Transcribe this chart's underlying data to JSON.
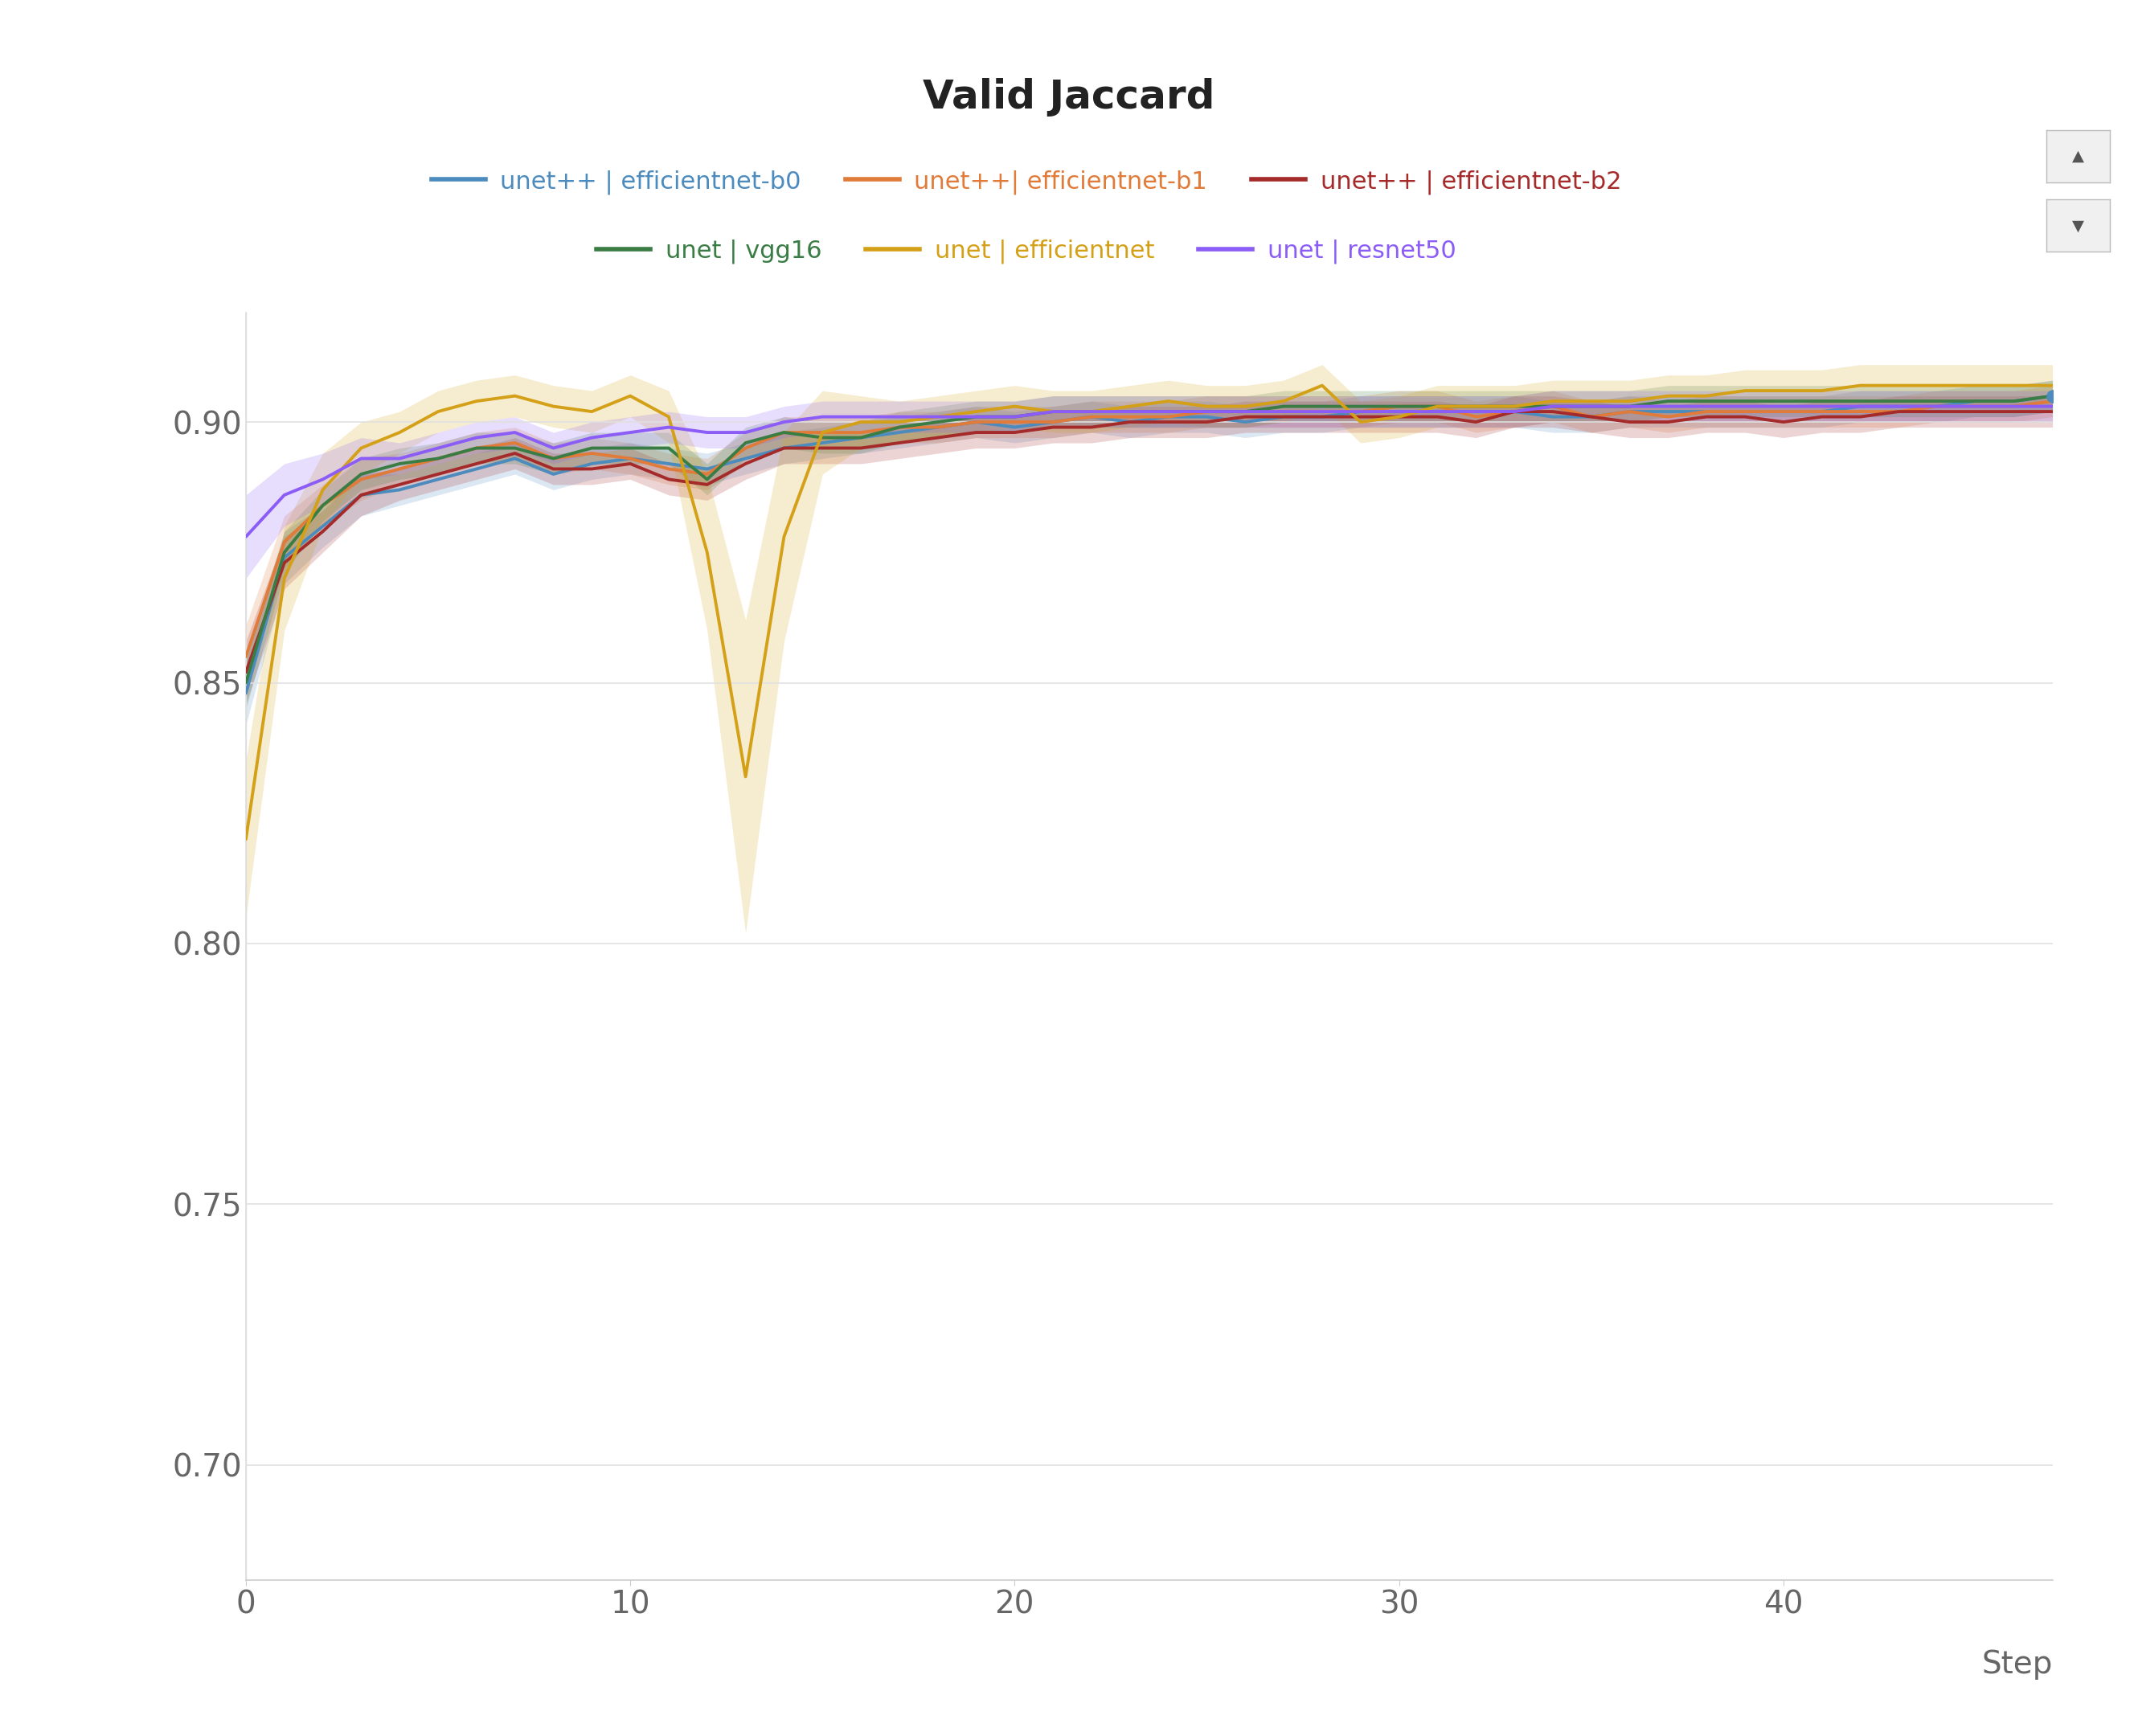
{
  "title": "Valid Jaccard",
  "xlabel": "Step",
  "background_color": "#ffffff",
  "series": [
    {
      "label": "unet++ | efficientnet-b0",
      "color": "#4b8bbe",
      "steps": [
        0,
        1,
        2,
        3,
        4,
        5,
        6,
        7,
        8,
        9,
        10,
        11,
        12,
        13,
        14,
        15,
        16,
        17,
        18,
        19,
        20,
        21,
        22,
        23,
        24,
        25,
        26,
        27,
        28,
        29,
        30,
        31,
        32,
        33,
        34,
        35,
        36,
        37,
        38,
        39,
        40,
        41,
        42,
        43,
        44,
        45,
        46,
        47
      ],
      "values": [
        0.848,
        0.874,
        0.88,
        0.886,
        0.887,
        0.889,
        0.891,
        0.893,
        0.89,
        0.892,
        0.893,
        0.892,
        0.891,
        0.893,
        0.895,
        0.896,
        0.897,
        0.898,
        0.899,
        0.9,
        0.899,
        0.9,
        0.901,
        0.9,
        0.901,
        0.901,
        0.9,
        0.901,
        0.901,
        0.902,
        0.902,
        0.902,
        0.902,
        0.902,
        0.901,
        0.901,
        0.902,
        0.902,
        0.902,
        0.902,
        0.902,
        0.902,
        0.903,
        0.903,
        0.903,
        0.904,
        0.904,
        0.905
      ],
      "std": [
        0.006,
        0.005,
        0.004,
        0.004,
        0.003,
        0.003,
        0.003,
        0.003,
        0.003,
        0.003,
        0.003,
        0.003,
        0.003,
        0.003,
        0.003,
        0.003,
        0.003,
        0.003,
        0.003,
        0.003,
        0.003,
        0.003,
        0.003,
        0.003,
        0.003,
        0.003,
        0.003,
        0.003,
        0.003,
        0.003,
        0.003,
        0.003,
        0.003,
        0.003,
        0.003,
        0.003,
        0.003,
        0.003,
        0.003,
        0.003,
        0.003,
        0.003,
        0.003,
        0.003,
        0.003,
        0.003,
        0.003,
        0.003
      ],
      "last_marker": true
    },
    {
      "label": "unet++| efficientnet-b1",
      "color": "#e07b39",
      "steps": [
        0,
        1,
        2,
        3,
        4,
        5,
        6,
        7,
        8,
        9,
        10,
        11,
        12,
        13,
        14,
        15,
        16,
        17,
        18,
        19,
        20,
        21,
        22,
        23,
        24,
        25,
        26,
        27,
        28,
        29,
        30,
        31,
        32,
        33,
        34,
        35,
        36,
        37,
        38,
        39,
        40,
        41,
        42,
        43,
        44,
        45,
        46,
        47
      ],
      "values": [
        0.855,
        0.877,
        0.884,
        0.889,
        0.891,
        0.893,
        0.895,
        0.896,
        0.893,
        0.894,
        0.893,
        0.891,
        0.89,
        0.895,
        0.898,
        0.898,
        0.898,
        0.899,
        0.899,
        0.9,
        0.9,
        0.9,
        0.901,
        0.901,
        0.901,
        0.902,
        0.902,
        0.902,
        0.902,
        0.902,
        0.903,
        0.903,
        0.901,
        0.902,
        0.903,
        0.901,
        0.902,
        0.901,
        0.902,
        0.902,
        0.902,
        0.902,
        0.902,
        0.902,
        0.903,
        0.903,
        0.903,
        0.904
      ],
      "std": [
        0.006,
        0.005,
        0.004,
        0.004,
        0.003,
        0.003,
        0.003,
        0.003,
        0.003,
        0.003,
        0.003,
        0.003,
        0.003,
        0.003,
        0.003,
        0.003,
        0.003,
        0.003,
        0.003,
        0.003,
        0.003,
        0.003,
        0.003,
        0.003,
        0.003,
        0.003,
        0.003,
        0.003,
        0.003,
        0.003,
        0.003,
        0.003,
        0.003,
        0.003,
        0.003,
        0.003,
        0.003,
        0.003,
        0.003,
        0.003,
        0.003,
        0.003,
        0.003,
        0.003,
        0.003,
        0.003,
        0.003,
        0.003
      ],
      "last_marker": false
    },
    {
      "label": "unet++ | efficientnet-b2",
      "color": "#a52a2a",
      "steps": [
        0,
        1,
        2,
        3,
        4,
        5,
        6,
        7,
        8,
        9,
        10,
        11,
        12,
        13,
        14,
        15,
        16,
        17,
        18,
        19,
        20,
        21,
        22,
        23,
        24,
        25,
        26,
        27,
        28,
        29,
        30,
        31,
        32,
        33,
        34,
        35,
        36,
        37,
        38,
        39,
        40,
        41,
        42,
        43,
        44,
        45,
        46,
        47
      ],
      "values": [
        0.852,
        0.873,
        0.879,
        0.886,
        0.888,
        0.89,
        0.892,
        0.894,
        0.891,
        0.891,
        0.892,
        0.889,
        0.888,
        0.892,
        0.895,
        0.895,
        0.895,
        0.896,
        0.897,
        0.898,
        0.898,
        0.899,
        0.899,
        0.9,
        0.9,
        0.9,
        0.901,
        0.901,
        0.901,
        0.901,
        0.901,
        0.901,
        0.9,
        0.902,
        0.902,
        0.901,
        0.9,
        0.9,
        0.901,
        0.901,
        0.9,
        0.901,
        0.901,
        0.902,
        0.902,
        0.902,
        0.902,
        0.902
      ],
      "std": [
        0.006,
        0.005,
        0.004,
        0.004,
        0.003,
        0.003,
        0.003,
        0.003,
        0.003,
        0.003,
        0.003,
        0.003,
        0.003,
        0.003,
        0.003,
        0.003,
        0.003,
        0.003,
        0.003,
        0.003,
        0.003,
        0.003,
        0.003,
        0.003,
        0.003,
        0.003,
        0.003,
        0.003,
        0.003,
        0.003,
        0.003,
        0.003,
        0.003,
        0.003,
        0.003,
        0.003,
        0.003,
        0.003,
        0.003,
        0.003,
        0.003,
        0.003,
        0.003,
        0.003,
        0.003,
        0.003,
        0.003,
        0.003
      ],
      "last_marker": false
    },
    {
      "label": "unet | vgg16",
      "color": "#3a7d44",
      "steps": [
        0,
        1,
        2,
        3,
        4,
        5,
        6,
        7,
        8,
        9,
        10,
        11,
        12,
        13,
        14,
        15,
        16,
        17,
        18,
        19,
        20,
        21,
        22,
        23,
        24,
        25,
        26,
        27,
        28,
        29,
        30,
        31,
        32,
        33,
        34,
        35,
        36,
        37,
        38,
        39,
        40,
        41,
        42,
        43,
        44,
        45,
        46,
        47
      ],
      "values": [
        0.85,
        0.875,
        0.884,
        0.89,
        0.892,
        0.893,
        0.895,
        0.895,
        0.893,
        0.895,
        0.895,
        0.895,
        0.889,
        0.896,
        0.898,
        0.897,
        0.897,
        0.899,
        0.9,
        0.901,
        0.901,
        0.902,
        0.902,
        0.902,
        0.902,
        0.902,
        0.902,
        0.903,
        0.903,
        0.903,
        0.903,
        0.903,
        0.903,
        0.903,
        0.903,
        0.903,
        0.903,
        0.904,
        0.904,
        0.904,
        0.904,
        0.904,
        0.904,
        0.904,
        0.904,
        0.904,
        0.904,
        0.905
      ],
      "std": [
        0.005,
        0.004,
        0.003,
        0.003,
        0.003,
        0.003,
        0.003,
        0.003,
        0.003,
        0.003,
        0.003,
        0.003,
        0.003,
        0.003,
        0.003,
        0.003,
        0.003,
        0.003,
        0.003,
        0.003,
        0.003,
        0.003,
        0.003,
        0.003,
        0.003,
        0.003,
        0.003,
        0.003,
        0.003,
        0.003,
        0.003,
        0.003,
        0.003,
        0.003,
        0.003,
        0.003,
        0.003,
        0.003,
        0.003,
        0.003,
        0.003,
        0.003,
        0.003,
        0.003,
        0.003,
        0.003,
        0.003,
        0.003
      ],
      "last_marker": false
    },
    {
      "label": "unet | efficientnet",
      "color": "#d4a017",
      "steps": [
        0,
        1,
        2,
        3,
        4,
        5,
        6,
        7,
        8,
        9,
        10,
        11,
        12,
        13,
        14,
        15,
        16,
        17,
        18,
        19,
        20,
        21,
        22,
        23,
        24,
        25,
        26,
        27,
        28,
        29,
        30,
        31,
        32,
        33,
        34,
        35,
        36,
        37,
        38,
        39,
        40,
        41,
        42,
        43,
        44,
        45,
        46,
        47
      ],
      "values": [
        0.82,
        0.87,
        0.887,
        0.895,
        0.898,
        0.902,
        0.904,
        0.905,
        0.903,
        0.902,
        0.905,
        0.901,
        0.875,
        0.832,
        0.878,
        0.898,
        0.9,
        0.9,
        0.901,
        0.902,
        0.903,
        0.902,
        0.902,
        0.903,
        0.904,
        0.903,
        0.903,
        0.904,
        0.907,
        0.9,
        0.901,
        0.903,
        0.903,
        0.903,
        0.904,
        0.904,
        0.904,
        0.905,
        0.905,
        0.906,
        0.906,
        0.906,
        0.907,
        0.907,
        0.907,
        0.907,
        0.907,
        0.907
      ],
      "std": [
        0.015,
        0.01,
        0.007,
        0.005,
        0.004,
        0.004,
        0.004,
        0.004,
        0.004,
        0.004,
        0.004,
        0.005,
        0.015,
        0.03,
        0.02,
        0.008,
        0.005,
        0.004,
        0.004,
        0.004,
        0.004,
        0.004,
        0.004,
        0.004,
        0.004,
        0.004,
        0.004,
        0.004,
        0.004,
        0.004,
        0.004,
        0.004,
        0.004,
        0.004,
        0.004,
        0.004,
        0.004,
        0.004,
        0.004,
        0.004,
        0.004,
        0.004,
        0.004,
        0.004,
        0.004,
        0.004,
        0.004,
        0.004
      ],
      "last_marker": false
    },
    {
      "label": "unet | resnet50",
      "color": "#8b5cf6",
      "steps": [
        0,
        1,
        2,
        3,
        4,
        5,
        6,
        7,
        8,
        9,
        10,
        11,
        12,
        13,
        14,
        15,
        16,
        17,
        18,
        19,
        20,
        21,
        22,
        23,
        24,
        25,
        26,
        27,
        28,
        29,
        30,
        31,
        32,
        33,
        34,
        35,
        36,
        37,
        38,
        39,
        40,
        41,
        42,
        43,
        44,
        45,
        46,
        47
      ],
      "values": [
        0.878,
        0.886,
        0.889,
        0.893,
        0.893,
        0.895,
        0.897,
        0.898,
        0.895,
        0.897,
        0.898,
        0.899,
        0.898,
        0.898,
        0.9,
        0.901,
        0.901,
        0.901,
        0.901,
        0.901,
        0.901,
        0.902,
        0.902,
        0.902,
        0.902,
        0.902,
        0.902,
        0.902,
        0.902,
        0.902,
        0.902,
        0.902,
        0.902,
        0.902,
        0.903,
        0.903,
        0.903,
        0.903,
        0.903,
        0.903,
        0.903,
        0.903,
        0.903,
        0.903,
        0.903,
        0.903,
        0.903,
        0.903
      ],
      "std": [
        0.008,
        0.006,
        0.005,
        0.004,
        0.003,
        0.003,
        0.003,
        0.003,
        0.003,
        0.003,
        0.003,
        0.003,
        0.003,
        0.003,
        0.003,
        0.003,
        0.003,
        0.003,
        0.003,
        0.003,
        0.003,
        0.003,
        0.003,
        0.003,
        0.003,
        0.003,
        0.003,
        0.003,
        0.003,
        0.003,
        0.003,
        0.003,
        0.003,
        0.003,
        0.003,
        0.003,
        0.003,
        0.003,
        0.003,
        0.003,
        0.003,
        0.003,
        0.003,
        0.003,
        0.003,
        0.003,
        0.003,
        0.003
      ],
      "last_marker": false
    }
  ],
  "xlim": [
    0,
    47
  ],
  "ylim": [
    0.678,
    0.921
  ],
  "yticks": [
    0.7,
    0.75,
    0.8,
    0.85,
    0.9
  ],
  "xticks": [
    0,
    10,
    20,
    30,
    40
  ],
  "title_fontsize": 36,
  "legend_fontsize": 22,
  "tick_fontsize": 28,
  "axis_label_fontsize": 28,
  "line_width": 2.8,
  "legend_row1": [
    {
      "label": "unet++ | efficientnet-b0",
      "color": "#4b8bbe"
    },
    {
      "label": "unet++| efficientnet-b1",
      "color": "#e07b39"
    },
    {
      "label": "unet++ | efficientnet-b2",
      "color": "#a52a2a"
    }
  ],
  "legend_row2": [
    {
      "label": "unet | vgg16",
      "color": "#3a7d44"
    },
    {
      "label": "unet | efficientnet",
      "color": "#d4a017"
    },
    {
      "label": "unet | resnet50",
      "color": "#8b5cf6"
    }
  ]
}
